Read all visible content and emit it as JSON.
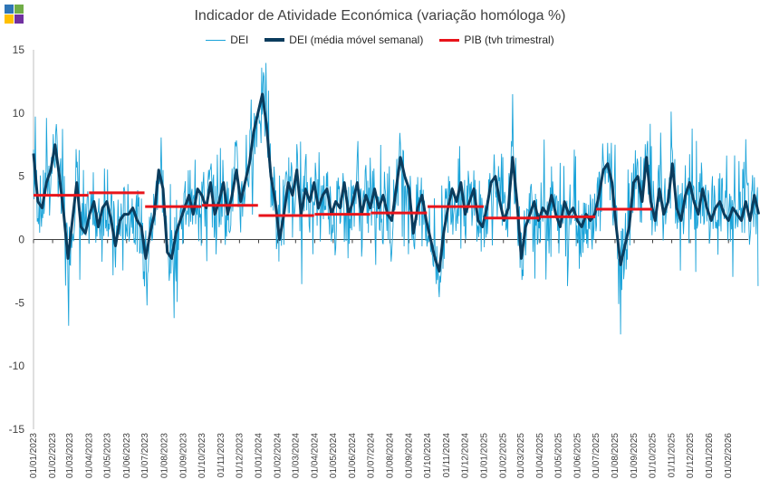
{
  "title": "Indicador de Atividade Económica (variação homóloga %)",
  "legend": {
    "dei": "DEI",
    "dei_mm": "DEI (média móvel semanal)",
    "pib": "PIB (tvh trimestral)"
  },
  "colors": {
    "dei": "#1aa3d9",
    "dei_mm": "#0b3c5d",
    "pib": "#e8141b",
    "logo": [
      "#2e75b6",
      "#70ad47",
      "#ffc000",
      "#7030a0"
    ]
  },
  "chart_data": {
    "type": "line",
    "title": "Indicador de Atividade Económica (variação homóloga %)",
    "ylim": [
      -15,
      15
    ],
    "yticks": [
      -15,
      -10,
      -5,
      0,
      5,
      10,
      15
    ],
    "xlim": [
      "2023-01-01",
      "2026-03-05"
    ],
    "xtick_labels": [
      "01/01/2023",
      "01/02/2023",
      "01/03/2023",
      "01/04/2023",
      "01/05/2023",
      "01/06/2023",
      "01/07/2023",
      "01/08/2023",
      "01/09/2023",
      "01/10/2023",
      "01/11/2023",
      "01/12/2023",
      "01/01/2024",
      "01/02/2024",
      "01/03/2024",
      "01/04/2024",
      "01/05/2024",
      "01/06/2024",
      "01/07/2024",
      "01/08/2024",
      "01/09/2024",
      "01/10/2024",
      "01/11/2024",
      "01/12/2024",
      "01/01/2025",
      "01/02/2025",
      "01/03/2025",
      "01/04/2025",
      "01/05/2025",
      "01/06/2025",
      "01/07/2025",
      "01/08/2025",
      "01/09/2025",
      "01/10/2025",
      "01/11/2025",
      "01/12/2025",
      "01/01/2026",
      "01/02/2026"
    ],
    "series": [
      {
        "name": "DEI (média móvel semanal)",
        "step_days": 7,
        "start": "2023-01-01",
        "values": [
          6.8,
          3.0,
          2.5,
          4.5,
          5.5,
          7.5,
          5.0,
          2.0,
          -1.5,
          1.5,
          4.5,
          1.0,
          0.5,
          2.0,
          3.0,
          1.0,
          2.5,
          3.0,
          1.5,
          -0.5,
          1.5,
          2.0,
          2.0,
          2.5,
          1.5,
          1.0,
          -1.5,
          0.5,
          2.0,
          5.5,
          4.0,
          -1.0,
          -1.5,
          0.5,
          1.5,
          2.5,
          3.5,
          2.0,
          4.0,
          3.5,
          2.5,
          4.5,
          2.0,
          3.0,
          4.5,
          2.0,
          3.5,
          5.5,
          3.0,
          4.5,
          6.0,
          8.5,
          10.0,
          11.5,
          9.0,
          5.0,
          3.0,
          0.0,
          2.0,
          4.5,
          3.5,
          5.5,
          2.0,
          4.0,
          3.0,
          4.5,
          2.5,
          3.5,
          4.0,
          2.0,
          3.0,
          2.5,
          4.5,
          2.0,
          3.0,
          4.5,
          2.0,
          3.5,
          2.5,
          4.0,
          2.5,
          3.5,
          2.0,
          1.5,
          4.0,
          6.5,
          5.0,
          4.0,
          0.5,
          2.5,
          3.5,
          1.5,
          0.0,
          -1.5,
          -2.5,
          0.5,
          2.5,
          4.0,
          3.0,
          4.5,
          2.0,
          3.0,
          4.0,
          1.5,
          1.0,
          2.5,
          4.5,
          5.0,
          3.0,
          1.5,
          2.5,
          6.5,
          3.0,
          -1.5,
          1.0,
          2.0,
          3.0,
          1.5,
          2.5,
          2.0,
          3.5,
          2.0,
          1.0,
          3.0,
          2.0,
          2.5,
          1.5,
          1.0,
          2.0,
          1.5,
          2.0,
          3.5,
          5.5,
          6.0,
          4.5,
          1.0,
          -2.0,
          -0.5,
          1.0,
          4.5,
          5.0,
          3.0,
          6.5,
          3.0,
          1.5,
          4.0,
          2.0,
          3.0,
          6.0,
          2.5,
          1.5,
          3.5,
          4.5,
          3.0,
          2.0,
          4.0,
          2.5,
          1.5,
          2.5,
          3.0,
          2.0,
          1.5,
          2.5,
          2.0,
          1.5,
          3.0,
          1.5,
          3.5,
          2.0
        ]
      },
      {
        "name": "PIB (tvh trimestral)",
        "segments": [
          {
            "from": "2023-01-01",
            "to": "2023-03-31",
            "value": 3.5
          },
          {
            "from": "2023-04-01",
            "to": "2023-06-30",
            "value": 3.7
          },
          {
            "from": "2023-07-01",
            "to": "2023-09-30",
            "value": 2.6
          },
          {
            "from": "2023-10-01",
            "to": "2023-12-31",
            "value": 2.7
          },
          {
            "from": "2024-01-01",
            "to": "2024-03-31",
            "value": 1.9
          },
          {
            "from": "2024-04-01",
            "to": "2024-06-30",
            "value": 2.0
          },
          {
            "from": "2024-07-01",
            "to": "2024-09-30",
            "value": 2.1
          },
          {
            "from": "2024-10-01",
            "to": "2024-12-31",
            "value": 2.6
          },
          {
            "from": "2025-01-01",
            "to": "2025-03-31",
            "value": 1.7
          },
          {
            "from": "2025-04-01",
            "to": "2025-06-30",
            "value": 1.8
          },
          {
            "from": "2025-07-01",
            "to": "2025-09-30",
            "value": 2.4
          }
        ]
      }
    ],
    "grid": false,
    "legend_position": "top"
  }
}
